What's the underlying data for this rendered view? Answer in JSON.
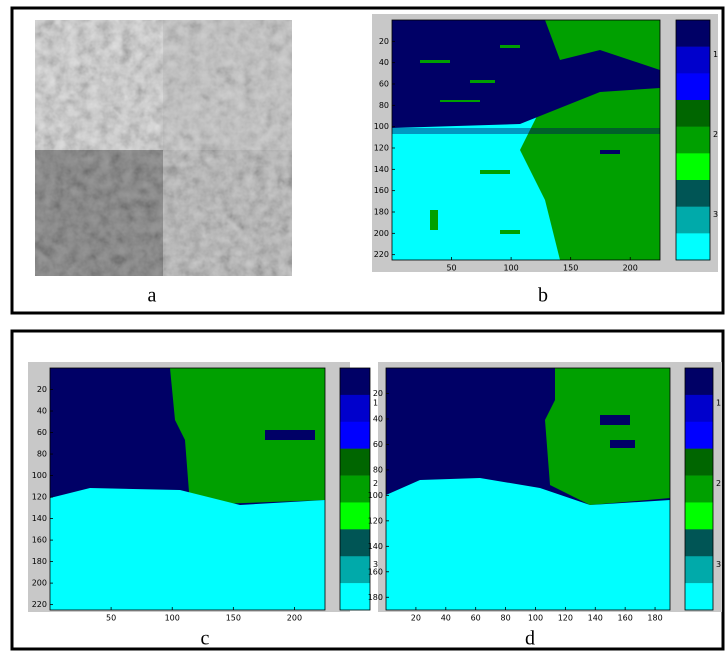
{
  "panels": [
    {
      "label": "a"
    },
    {
      "label": "b",
      "yticks": [
        20,
        40,
        60,
        80,
        100,
        120,
        140,
        160,
        180,
        200,
        220
      ],
      "xticks": [
        50,
        100,
        150,
        200
      ],
      "colorbar": [
        1,
        2,
        3
      ]
    },
    {
      "label": "c",
      "yticks": [
        20,
        40,
        60,
        80,
        100,
        120,
        140,
        160,
        180,
        200,
        220
      ],
      "xticks": [
        50,
        100,
        150,
        200
      ],
      "colorbar": [
        1,
        2,
        3
      ]
    },
    {
      "label": "d",
      "yticks": [
        20,
        40,
        60,
        80,
        100,
        120,
        140,
        160,
        180
      ],
      "xticks": [
        20,
        40,
        60,
        80,
        100,
        120,
        140,
        160,
        180
      ],
      "colorbar": [
        1,
        2,
        3
      ]
    }
  ]
}
